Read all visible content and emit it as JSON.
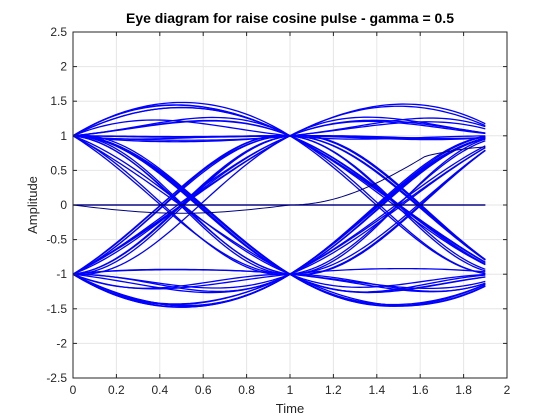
{
  "chart_data": {
    "type": "line",
    "title": "Eye diagram for raise cosine pulse - gamma = 0.5",
    "xlabel": "Time",
    "ylabel": "Amplitude",
    "xlim": [
      0,
      2
    ],
    "ylim": [
      -2.5,
      2.5
    ],
    "x_ticks": [
      0,
      0.2,
      0.4,
      0.6,
      0.8,
      1,
      1.2,
      1.4,
      1.6,
      1.8,
      2
    ],
    "x_tick_labels": [
      "0",
      "0.2",
      "0.4",
      "0.6",
      "0.8",
      "1",
      "1.2",
      "1.4",
      "1.6",
      "1.8",
      "2"
    ],
    "y_ticks": [
      -2.5,
      -2,
      -1.5,
      -1,
      -0.5,
      0,
      0.5,
      1,
      1.5,
      2,
      2.5
    ],
    "y_tick_labels": [
      "-2.5",
      "-2",
      "-1.5",
      "-1",
      "-0.5",
      "0",
      "0.5",
      "1",
      "1.5",
      "2",
      "2.5"
    ],
    "grid": true,
    "x_data_max": 1.9,
    "symbol_levels": [
      -1,
      1
    ],
    "rolloff": 0.5,
    "eye_centers": [
      0.5,
      1.5
    ],
    "trace_color": "#0000ff",
    "transient_color": "#000080"
  }
}
